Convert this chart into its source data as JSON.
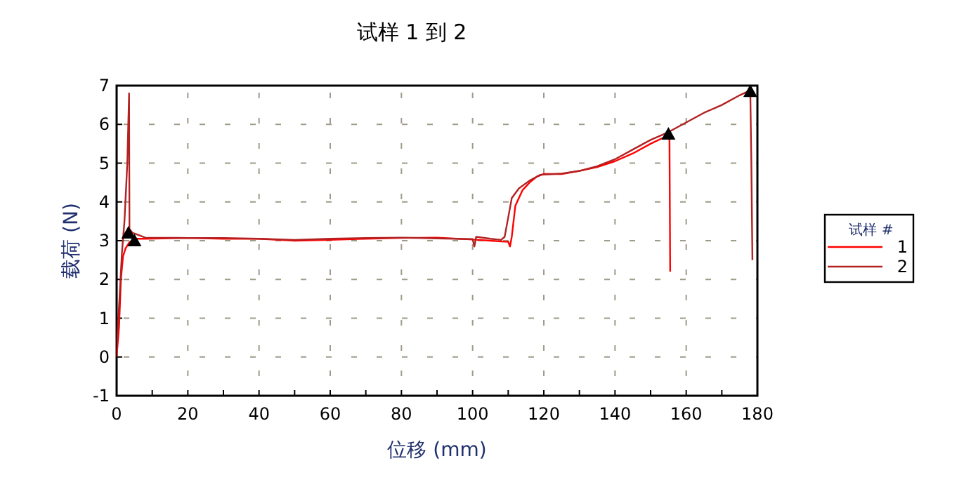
{
  "chart_data": {
    "type": "line",
    "title": "试样 1 到 2",
    "xlabel": "位移 (mm)",
    "ylabel": "载荷 (N)",
    "legend_title": "试样 #",
    "legend": "right",
    "grid": true,
    "xlim": [
      0,
      180
    ],
    "ylim": [
      -1,
      7
    ],
    "xticks": [
      0,
      {
        "value": 10,
        "label": null
      },
      20,
      {
        "value": 30,
        "label": null
      },
      40,
      {
        "value": 50,
        "label": null
      },
      60,
      {
        "value": 70,
        "label": null
      },
      80,
      {
        "value": 90,
        "label": null
      },
      100,
      {
        "value": 110,
        "label": null
      },
      120,
      {
        "value": 130,
        "label": null
      },
      140,
      {
        "value": 150,
        "label": null
      },
      160,
      {
        "value": 170,
        "label": null
      },
      180
    ],
    "yticks": [
      -1,
      0,
      1,
      2,
      3,
      4,
      5,
      6,
      7
    ],
    "series": [
      {
        "name": "1",
        "color": "#ff0000",
        "x": [
          0,
          0.7,
          1.2,
          1.8,
          2.5,
          3.5,
          5,
          8,
          20,
          30,
          40,
          50,
          60,
          70,
          80,
          90,
          100,
          105,
          108,
          110,
          110.5,
          111,
          112,
          114,
          116,
          118,
          120,
          125,
          130,
          135,
          140,
          145,
          150,
          155,
          155.3,
          155.5
        ],
        "values": [
          0,
          0.8,
          2.0,
          2.6,
          2.8,
          2.95,
          3.05,
          3.05,
          3.07,
          3.05,
          3.05,
          3.0,
          3.02,
          3.05,
          3.07,
          3.08,
          3.03,
          3.0,
          2.98,
          2.97,
          2.85,
          3.1,
          3.9,
          4.3,
          4.5,
          4.65,
          4.72,
          4.72,
          4.8,
          4.9,
          5.05,
          5.25,
          5.5,
          5.72,
          5.6,
          2.2
        ]
      },
      {
        "name": "2",
        "color": "#b22222",
        "x": [
          0,
          0.8,
          1.5,
          2.2,
          3,
          3.5,
          3.6,
          4.5,
          6,
          8,
          20,
          30,
          40,
          50,
          60,
          70,
          80,
          90,
          100,
          100.5,
          101,
          105,
          108,
          109,
          110,
          111,
          113,
          116,
          119,
          125,
          130,
          135,
          140,
          145,
          150,
          155,
          160,
          165,
          170,
          175,
          178,
          178.3,
          178.6
        ],
        "values": [
          0.2,
          1.5,
          2.7,
          3.5,
          5.0,
          6.8,
          3.3,
          3.2,
          3.15,
          3.08,
          3.07,
          3.07,
          3.05,
          3.02,
          3.05,
          3.07,
          3.08,
          3.06,
          3.04,
          2.85,
          3.1,
          3.05,
          3.02,
          3.1,
          3.6,
          4.1,
          4.35,
          4.55,
          4.7,
          4.73,
          4.8,
          4.92,
          5.1,
          5.35,
          5.6,
          5.8,
          6.05,
          6.3,
          6.5,
          6.75,
          6.88,
          5.0,
          2.5
        ]
      },
      {
        "type": "scatter",
        "marker": "triangle",
        "color": "#000000",
        "x": [
          3.3,
          5,
          155,
          178
        ],
        "values": [
          3.2,
          3.0,
          5.75,
          6.85
        ]
      }
    ]
  }
}
